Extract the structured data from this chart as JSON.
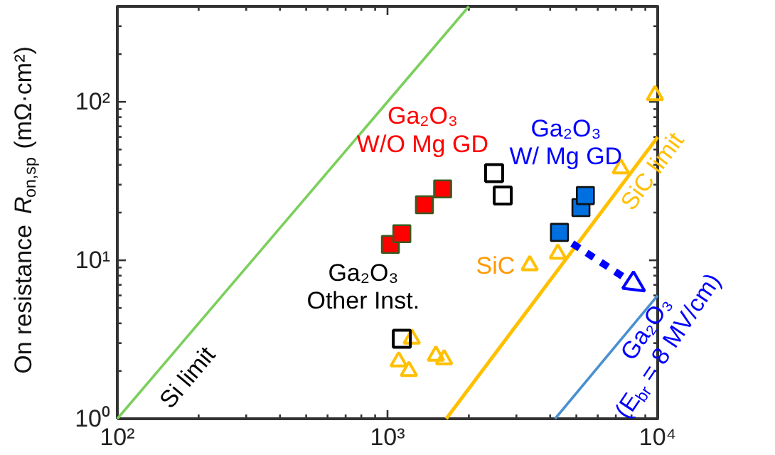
{
  "chart_data": {
    "type": "scatter",
    "ylabel": "On resistance R$_{on,sp}$ (mΩ·cm²)",
    "log": "xy",
    "xlim": [
      100,
      10000
    ],
    "ylim": [
      1,
      400
    ],
    "xticks": [
      {
        "value": 100,
        "label": "10²"
      },
      {
        "value": 1000,
        "label": "10³"
      },
      {
        "value": 10000,
        "label": "10⁴"
      }
    ],
    "yticks": [
      {
        "value": 1,
        "label": "10⁰"
      },
      {
        "value": 10,
        "label": "10¹"
      },
      {
        "value": 100,
        "label": "10²"
      }
    ],
    "series": [
      {
        "type": "line",
        "color": "#7ccf5c",
        "x": [
          100,
          2000
        ],
        "values": [
          1,
          400
        ],
        "marker": "none"
      },
      {
        "type": "line",
        "color": "#ffc000",
        "x": [
          1650,
          10000
        ],
        "values": [
          1,
          60
        ],
        "marker": "none"
      },
      {
        "type": "line",
        "color": "#4a90d0",
        "x": [
          4170,
          10000
        ],
        "values": [
          1,
          6
        ],
        "marker": "none"
      },
      {
        "color": "#ff0000",
        "x": [
          1025,
          1130,
          1370,
          1600
        ],
        "values": [
          12.6,
          14.7,
          22.4,
          28.2
        ],
        "marker": "square"
      },
      {
        "color": "#0070e0",
        "x": [
          4330,
          5200,
          5400
        ],
        "values": [
          15,
          21.5,
          25.6
        ],
        "marker": "square"
      },
      {
        "color": "#000000",
        "x": [
          2480,
          2670,
          1130
        ],
        "values": [
          35.5,
          25.6,
          3.2
        ],
        "marker": "square"
      },
      {
        "color": "#ffc000",
        "x": [
          9770,
          7300,
          4270,
          3360,
          1230,
          1100,
          1200,
          1510,
          1620
        ],
        "values": [
          110,
          38,
          11,
          9.3,
          3.2,
          2.3,
          2.0,
          2.5,
          2.37
        ],
        "marker": "triangle"
      }
    ],
    "annotations": [
      "Ga₂O₃\nW/O Mg GD",
      "Ga₂O₃\nW/ Mg GD",
      "Ga₂O₃\nOther Inst.",
      "SiC",
      "Si limit",
      "SiC limit",
      "Ga₂O₃\n(E$_{br}$ = 8 MV/cm)"
    ]
  }
}
